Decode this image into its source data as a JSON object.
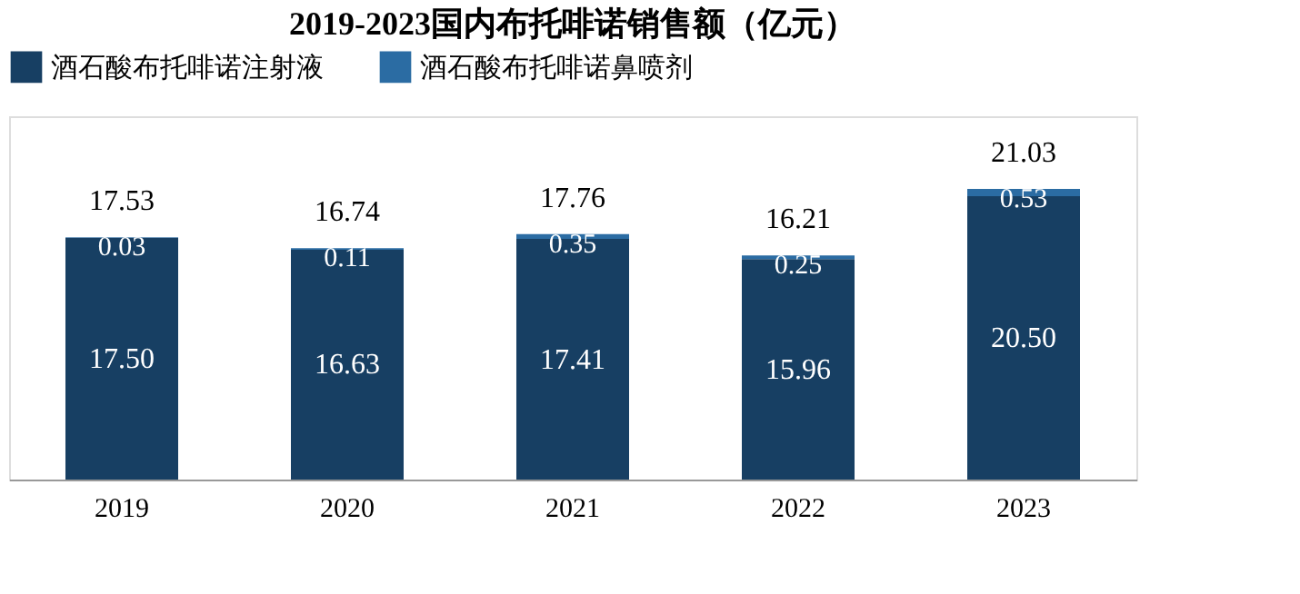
{
  "chart_data": {
    "type": "bar",
    "title": "2019-2023国内布托啡诺销售额（亿元）",
    "categories": [
      "2019",
      "2020",
      "2021",
      "2022",
      "2023"
    ],
    "stacked": true,
    "legend": "top",
    "series": [
      {
        "name": "酒石酸布托啡诺注射液",
        "color": "#173f63",
        "values": [
          17.5,
          16.63,
          17.41,
          15.96,
          20.5
        ],
        "value_labels": [
          "17.50",
          "16.63",
          "17.41",
          "15.96",
          "20.50"
        ]
      },
      {
        "name": "酒石酸布托啡诺鼻喷剂",
        "color": "#2b6ca3",
        "values": [
          0.03,
          0.11,
          0.35,
          0.25,
          0.53
        ],
        "value_labels": [
          "0.03",
          "0.11",
          "0.35",
          "0.25",
          "0.53"
        ]
      }
    ],
    "totals": [
      "17.53",
      "16.74",
      "17.76",
      "16.21",
      "21.03"
    ]
  }
}
